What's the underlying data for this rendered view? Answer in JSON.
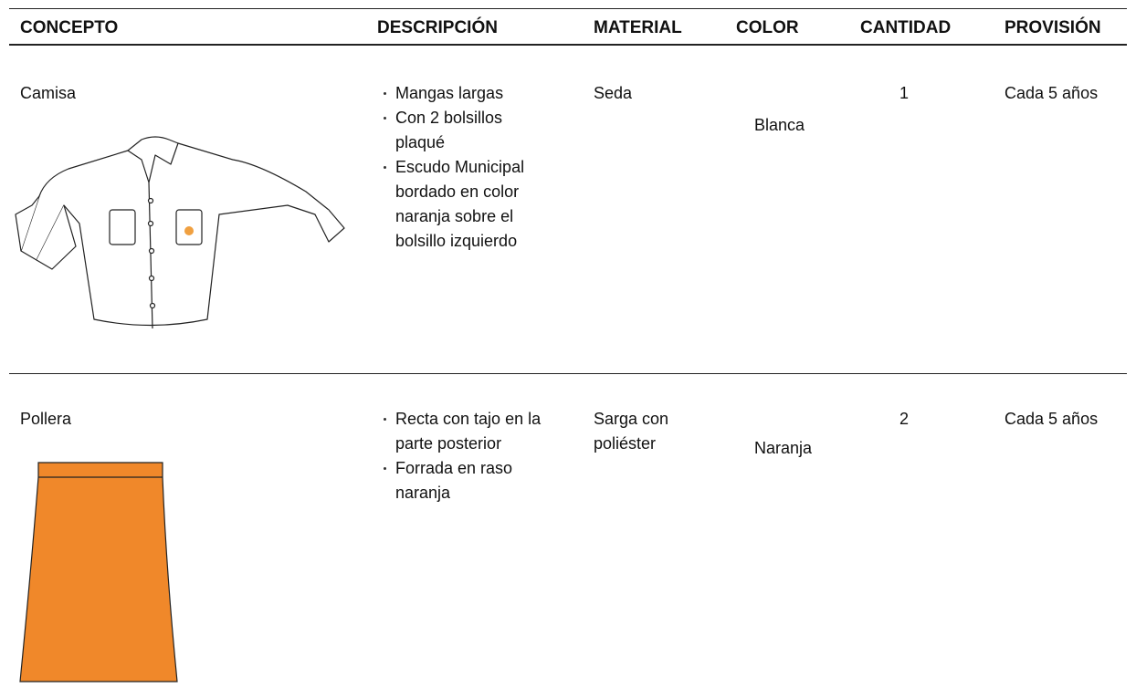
{
  "table": {
    "header": [
      "CONCEPTO",
      "DESCRIPCIÓN",
      "MATERIAL",
      "COLOR",
      "CANTIDAD",
      "PROVISIÓN"
    ],
    "rows": [
      {
        "concepto": "Camisa",
        "descripcion": [
          "Mangas largas",
          "Con 2 bolsillos plaqué",
          "Escudo Municipal bordado en color naranja sobre el bolsillo izquierdo"
        ],
        "material": "Seda",
        "color": "Blanca",
        "cantidad": 1,
        "provision": "Cada 5 años"
      },
      {
        "concepto": "Pollera",
        "descripcion": [
          "Recta con tajo en la parte posterior",
          "Forrada en raso naranja"
        ],
        "material": "Sarga con poliéster",
        "color": "Naranja",
        "cantidad": 2,
        "provision": "Cada 5 años"
      }
    ]
  }
}
